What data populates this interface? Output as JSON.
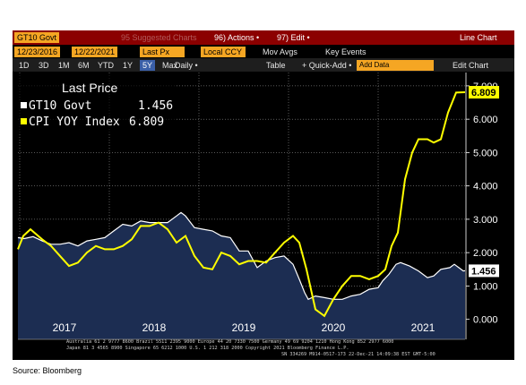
{
  "toolbar": {
    "ticker": "GT10 Govt",
    "suggested": "95 Suggested Charts",
    "actions": "96) Actions •",
    "edit": "97) Edit •",
    "chart_type": "Line Chart",
    "start_date": "12/23/2016",
    "end_date": "12/22/2021",
    "field": "Last Px",
    "currency": "Local CCY",
    "mov_avgs": "Mov Avgs",
    "key_events": "Key Events",
    "ranges": [
      "1D",
      "3D",
      "1M",
      "6M",
      "YTD",
      "1Y",
      "5Y",
      "Max"
    ],
    "active_range": "5Y",
    "periodicity": "Daily •",
    "table": "Table",
    "quick_add": "+ Quick-Add •",
    "add_data": "Add Data",
    "edit_chart": "Edit Chart"
  },
  "legend": {
    "title": "Last Price",
    "items": [
      {
        "label": "GT10 Govt",
        "value": "1.456",
        "color": "#ffffff"
      },
      {
        "label": "CPI YOY Index",
        "value": "6.809",
        "color": "#ffff00"
      }
    ]
  },
  "copyright_line1": "Australia 61 2 9777 8600 Brazil 5511 2395 9000 Europe 44 20 7330 7500 Germany 49 69 9204 1210 Hong Kong 852 2977 6000",
  "copyright_line2": "Japan 81 3 4565 8900      Singapore 65 6212 1000      U.S. 1 212 318 2000      Copyright 2021 Bloomberg Finance L.P.",
  "copyright_line3": "SN 334269 M914-0517-173 22-Dec-21 14:09:38 EST  GMT-5:00",
  "source": "Source: Bloomberg",
  "chart_data": {
    "type": "line",
    "x_unit": "year",
    "xlim": [
      2016.98,
      2021.97
    ],
    "ylim": [
      -0.6,
      7.4
    ],
    "yticks": [
      "0.000",
      "1.000",
      "2.000",
      "3.000",
      "4.000",
      "5.000",
      "6.000",
      "7.000"
    ],
    "xticks": [
      "2017",
      "2018",
      "2019",
      "2020",
      "2021"
    ],
    "colors": {
      "gt10": "#ffffff",
      "gt10_fill": "#1c2d52",
      "cpi": "#ffff00",
      "grid": "#ffffff",
      "last_gt10_label_bg": "#ffffff",
      "last_cpi_label_bg": "#ffff00"
    },
    "series": [
      {
        "name": "GT10 Govt",
        "x": [
          2016.98,
          2017.05,
          2017.15,
          2017.25,
          2017.35,
          2017.45,
          2017.55,
          2017.65,
          2017.75,
          2017.85,
          2017.95,
          2018.05,
          2018.15,
          2018.25,
          2018.35,
          2018.45,
          2018.55,
          2018.65,
          2018.75,
          2018.8,
          2018.85,
          2018.95,
          2019.05,
          2019.15,
          2019.25,
          2019.35,
          2019.45,
          2019.55,
          2019.65,
          2019.75,
          2019.85,
          2019.95,
          2020.05,
          2020.12,
          2020.18,
          2020.22,
          2020.3,
          2020.4,
          2020.5,
          2020.6,
          2020.7,
          2020.8,
          2020.9,
          2021.0,
          2021.05,
          2021.12,
          2021.2,
          2021.25,
          2021.35,
          2021.45,
          2021.55,
          2021.62,
          2021.7,
          2021.8,
          2021.85,
          2021.9,
          2021.95,
          2021.97
        ],
        "values": [
          2.45,
          2.42,
          2.48,
          2.35,
          2.25,
          2.25,
          2.3,
          2.2,
          2.35,
          2.4,
          2.45,
          2.65,
          2.85,
          2.8,
          2.95,
          2.9,
          2.9,
          2.9,
          3.1,
          3.2,
          3.1,
          2.75,
          2.7,
          2.65,
          2.5,
          2.45,
          2.05,
          2.05,
          1.55,
          1.75,
          1.85,
          1.9,
          1.65,
          1.2,
          0.8,
          0.6,
          0.7,
          0.65,
          0.6,
          0.6,
          0.7,
          0.75,
          0.9,
          0.95,
          1.15,
          1.35,
          1.65,
          1.7,
          1.6,
          1.45,
          1.25,
          1.3,
          1.5,
          1.55,
          1.65,
          1.55,
          1.45,
          1.456
        ],
        "last_value": "1.456"
      },
      {
        "name": "CPI YOY Index",
        "x": [
          2016.98,
          2017.04,
          2017.12,
          2017.25,
          2017.35,
          2017.45,
          2017.55,
          2017.65,
          2017.75,
          2017.85,
          2017.95,
          2018.05,
          2018.15,
          2018.25,
          2018.35,
          2018.45,
          2018.55,
          2018.65,
          2018.75,
          2018.85,
          2018.95,
          2019.05,
          2019.15,
          2019.25,
          2019.35,
          2019.45,
          2019.55,
          2019.65,
          2019.75,
          2019.85,
          2019.95,
          2020.05,
          2020.12,
          2020.2,
          2020.3,
          2020.4,
          2020.5,
          2020.6,
          2020.7,
          2020.8,
          2020.9,
          2021.0,
          2021.08,
          2021.15,
          2021.22,
          2021.3,
          2021.38,
          2021.45,
          2021.55,
          2021.62,
          2021.7,
          2021.78,
          2021.87,
          2021.97
        ],
        "values": [
          2.1,
          2.5,
          2.7,
          2.4,
          2.2,
          1.9,
          1.6,
          1.7,
          2.0,
          2.2,
          2.1,
          2.1,
          2.2,
          2.4,
          2.8,
          2.8,
          2.9,
          2.7,
          2.3,
          2.5,
          1.9,
          1.55,
          1.5,
          2.0,
          1.9,
          1.65,
          1.75,
          1.75,
          1.7,
          2.0,
          2.3,
          2.5,
          2.3,
          1.5,
          0.3,
          0.1,
          0.6,
          1.0,
          1.3,
          1.3,
          1.2,
          1.3,
          1.5,
          2.2,
          2.6,
          4.2,
          5.0,
          5.4,
          5.4,
          5.3,
          5.4,
          6.2,
          6.8,
          6.809
        ],
        "last_value": "6.809"
      }
    ]
  }
}
